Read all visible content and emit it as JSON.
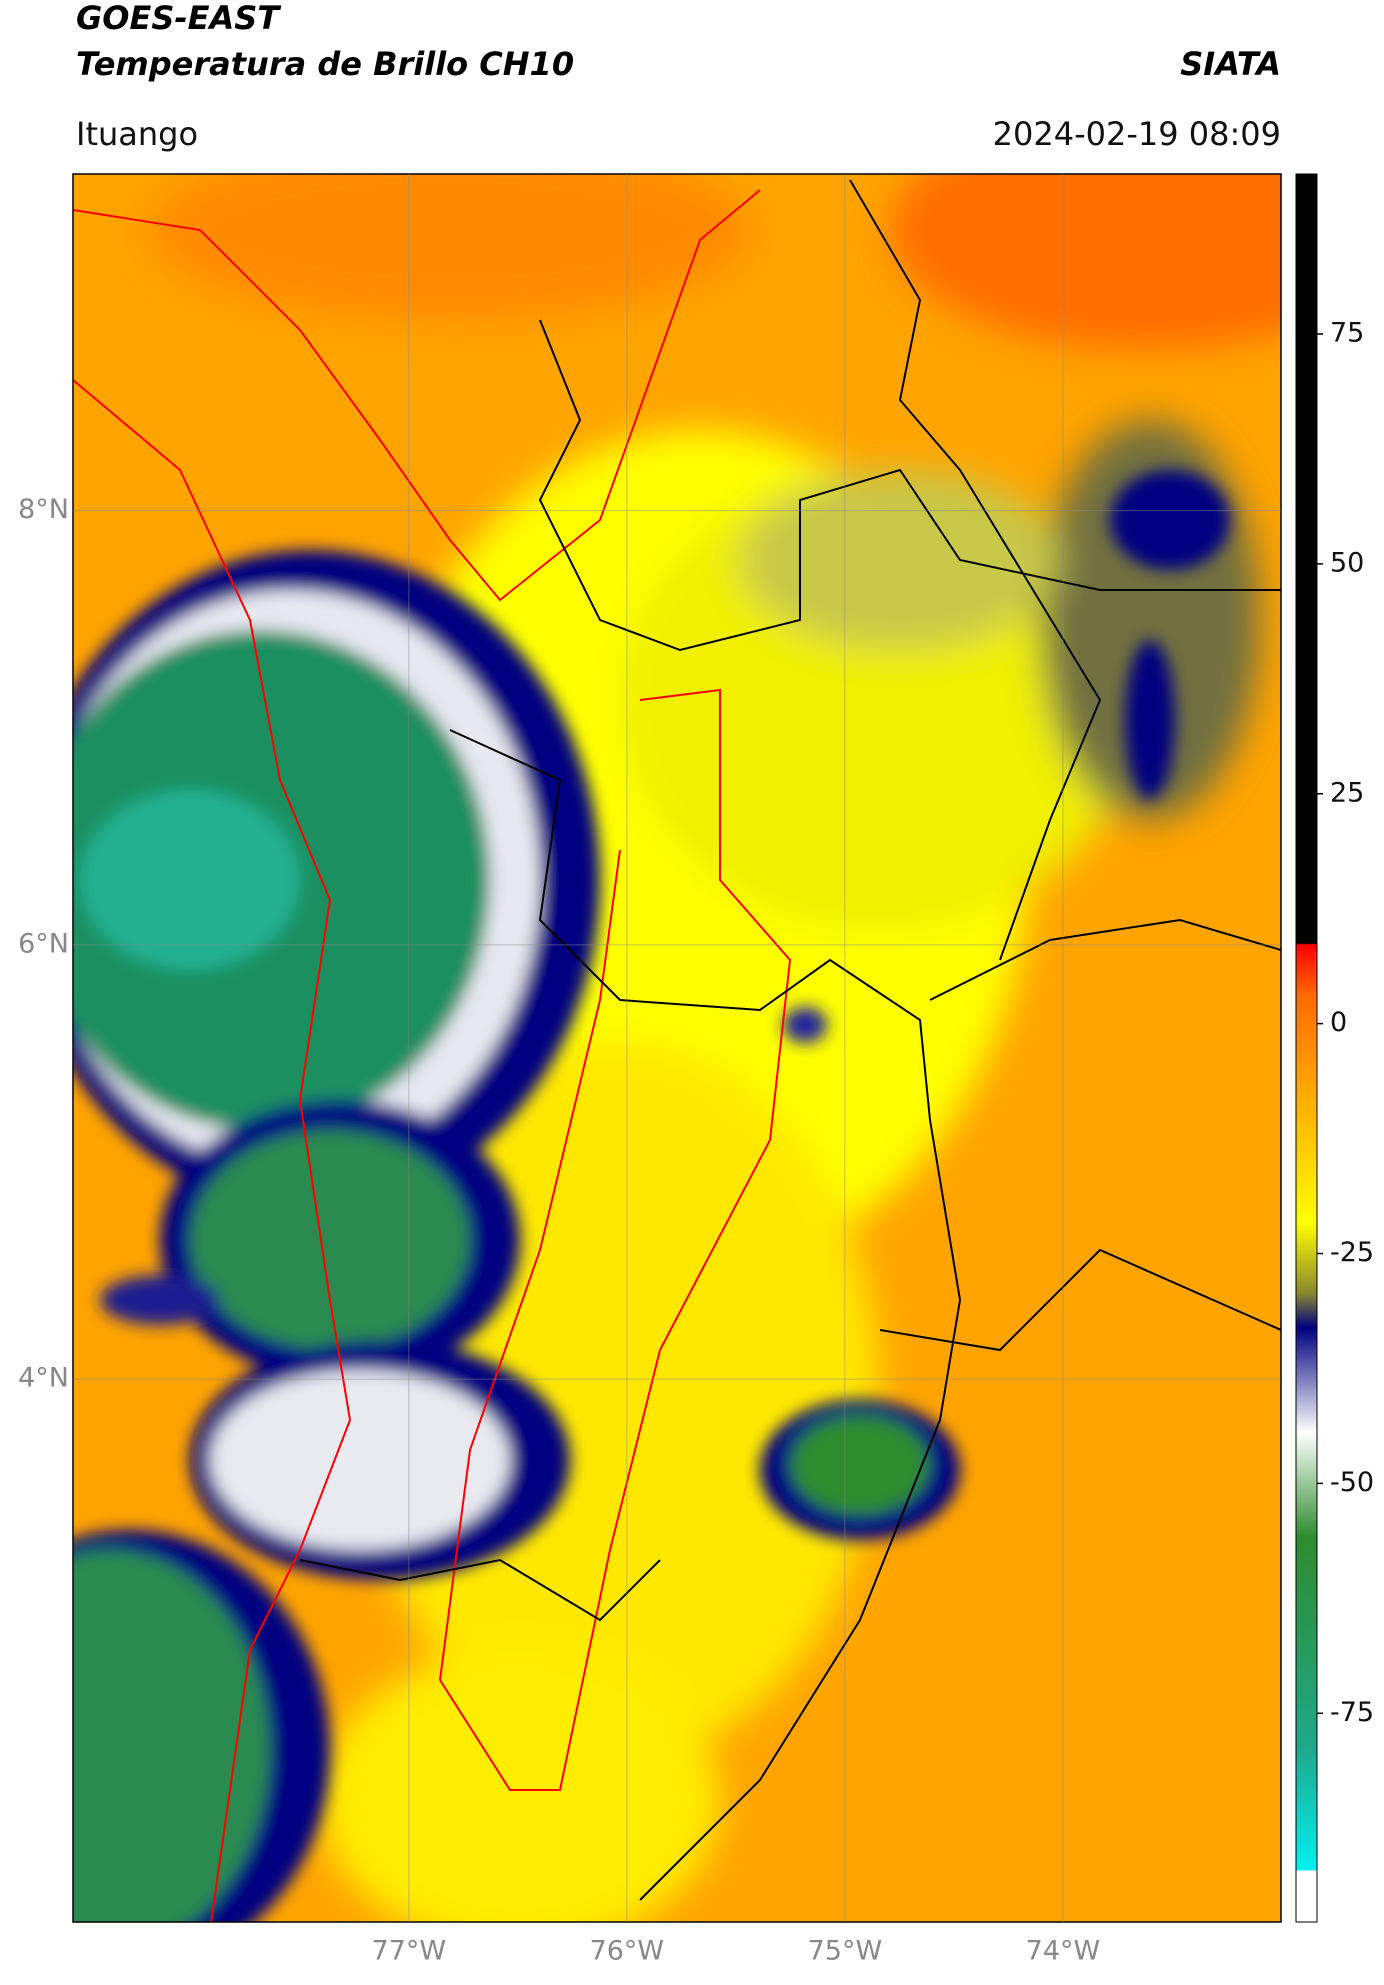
{
  "header": {
    "title": "GOES-EAST",
    "subtitle": "Temperatura de Brillo CH10",
    "source": "SIATA",
    "location": "Ituango",
    "datetime": "2024-02-19 08:09"
  },
  "map": {
    "xlim": [
      -78.54,
      -73.0
    ],
    "ylim": [
      1.5,
      9.55
    ],
    "xticks": [
      {
        "value": -77,
        "label": "77°W"
      },
      {
        "value": -76,
        "label": "76°W"
      },
      {
        "value": -75,
        "label": "75°W"
      },
      {
        "value": -74,
        "label": "74°W"
      }
    ],
    "yticks": [
      {
        "value": 4,
        "label": "4°N"
      },
      {
        "value": 6,
        "label": "6°N"
      },
      {
        "value": 8,
        "label": "8°N"
      }
    ],
    "grid": true
  },
  "colorbar": {
    "lim": [
      -97.7,
      92.4
    ],
    "ticks": [
      -75,
      -50,
      -25,
      0,
      25,
      50,
      75
    ]
  }
}
